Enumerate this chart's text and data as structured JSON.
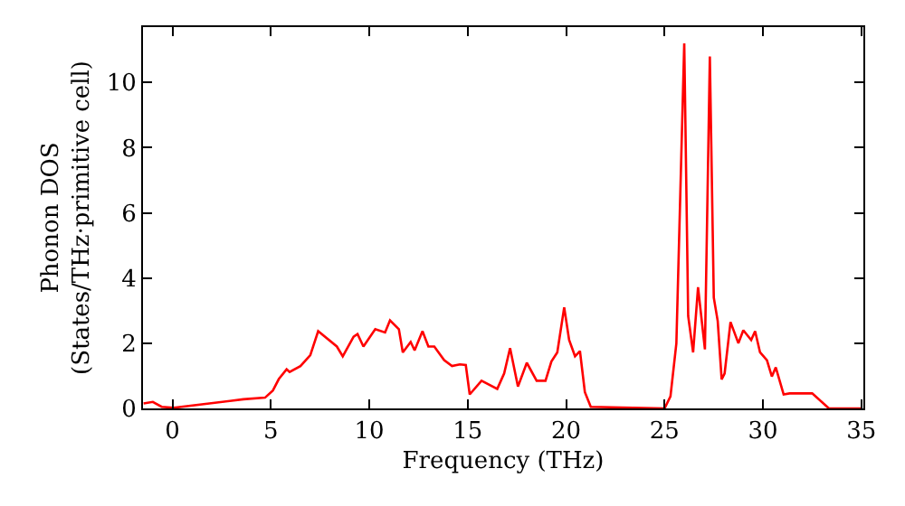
{
  "chart_data": {
    "type": "line",
    "xlabel": "Frequency (THz)",
    "ylabel": "Phonon DOS\n(States/THz·primitive cell)",
    "x": [
      -1.47,
      -1.0,
      -0.55,
      0.06,
      3.6,
      4.7,
      5.1,
      5.4,
      5.8,
      5.95,
      6.5,
      7.0,
      7.4,
      8.35,
      8.65,
      9.2,
      9.4,
      9.7,
      10.3,
      10.8,
      11.05,
      11.5,
      11.7,
      12.1,
      12.3,
      12.7,
      13.0,
      13.3,
      13.8,
      14.2,
      14.6,
      14.9,
      15.1,
      15.7,
      16.5,
      16.85,
      17.15,
      17.55,
      18.0,
      18.5,
      18.95,
      19.25,
      19.55,
      19.9,
      20.15,
      20.45,
      20.7,
      20.95,
      21.25,
      25.0,
      25.3,
      25.6,
      26.0,
      26.2,
      26.45,
      26.7,
      27.05,
      27.3,
      27.5,
      27.7,
      27.9,
      28.05,
      28.35,
      28.75,
      29.0,
      29.4,
      29.6,
      29.85,
      30.2,
      30.45,
      30.65,
      31.05,
      31.35,
      32.5,
      33.35,
      35.05
    ],
    "series": [
      {
        "color": "#ff0000",
        "values": [
          0.15,
          0.2,
          0.05,
          0.02,
          0.28,
          0.33,
          0.55,
          0.9,
          1.2,
          1.12,
          1.3,
          1.63,
          2.37,
          1.9,
          1.6,
          2.2,
          2.28,
          1.9,
          2.43,
          2.33,
          2.7,
          2.43,
          1.72,
          2.04,
          1.78,
          2.37,
          1.9,
          1.9,
          1.48,
          1.3,
          1.35,
          1.33,
          0.43,
          0.85,
          0.6,
          1.07,
          1.85,
          0.67,
          1.4,
          0.85,
          0.85,
          1.44,
          1.72,
          3.1,
          2.1,
          1.6,
          1.76,
          0.5,
          0.05,
          0.0,
          0.37,
          2.0,
          11.2,
          2.83,
          1.72,
          3.72,
          1.81,
          10.8,
          3.4,
          2.68,
          0.89,
          1.07,
          2.65,
          2.0,
          2.4,
          2.1,
          2.37,
          1.72,
          1.48,
          0.98,
          1.26,
          0.43,
          0.46,
          0.46,
          0.0,
          0.0
        ]
      }
    ],
    "xlim": [
      -1.5,
      35.1
    ],
    "ylim": [
      0,
      11.7
    ],
    "xticks": [
      0,
      5,
      10,
      15,
      20,
      25,
      30,
      35
    ],
    "yticks": [
      0,
      2,
      4,
      6,
      8,
      10
    ],
    "marker": "none",
    "line_style": "solid"
  }
}
